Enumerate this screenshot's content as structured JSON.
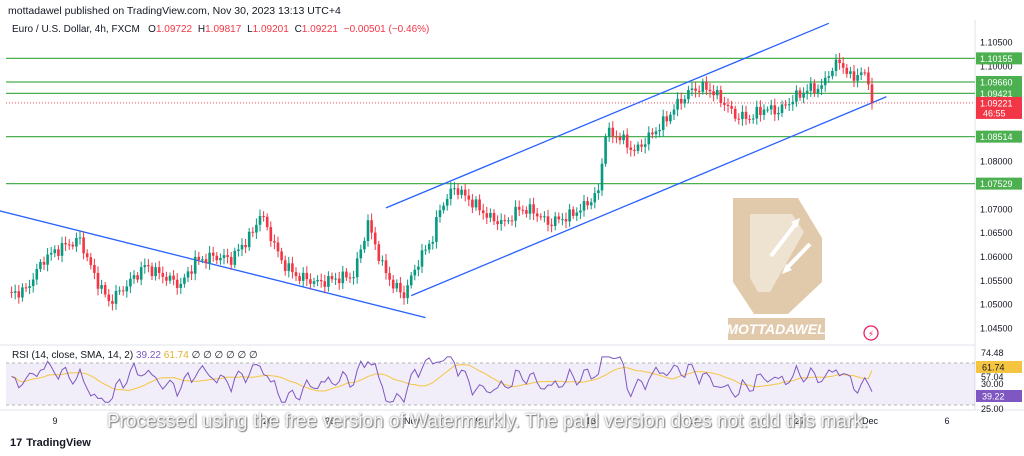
{
  "header": {
    "published": "mottadawel published on TradingView.com, Nov 30, 2023 13:13 UTC+4",
    "symbol": "Euro / U.S. Dollar, 4h, FXCM",
    "ohlc": [
      {
        "k": "O",
        "v": "1.09722"
      },
      {
        "k": "H",
        "v": "1.09817"
      },
      {
        "k": "L",
        "v": "1.09201"
      },
      {
        "k": "C",
        "v": "1.09221"
      },
      {
        "k": "",
        "v": "−0.00501 (−0.46%)"
      }
    ]
  },
  "rsi_legend": {
    "name": "RSI (14, close, SMA, 14, 2)",
    "rsi_value": "39.22",
    "sma_value": "61.74",
    "zeros": "∅ ∅ ∅ ∅ ∅ ∅"
  },
  "branding": {
    "watermark_logo": "MOTTADAWEL",
    "tradingview": "TradingView",
    "processed_notice": "Processed using the free version of Watermarkly. The paid version does not add this mark."
  },
  "colors": {
    "up": "#089981",
    "down": "#f23645",
    "channel": "#2962ff",
    "level": "#4caf50",
    "rsi": "#7e57c2",
    "rsi_sma": "#f5c542",
    "rsi_band": "#7e57c2"
  },
  "chart_data": [
    {
      "type": "candlestick",
      "symbol": "EURUSD",
      "timeframe": "4h",
      "ylim": [
        1.0425,
        1.1075
      ],
      "y_ticks": [
        "1.10500",
        "1.10000",
        "1.09500",
        "1.09000",
        "1.08500",
        "1.08000",
        "1.07500",
        "1.07000",
        "1.06500",
        "1.06000",
        "1.05500",
        "1.05000",
        "1.04500"
      ],
      "x_ticks": [
        "9",
        "16",
        "20",
        "26",
        "Nov",
        "9",
        "13",
        "17",
        "27",
        "Dec",
        "6"
      ],
      "price_labels": [
        {
          "price": 1.10155,
          "text": "1.10155",
          "kind": "level"
        },
        {
          "price": 1.0966,
          "text": "1.09660",
          "kind": "level"
        },
        {
          "price": 1.09421,
          "text": "1.09421",
          "kind": "level"
        },
        {
          "price": 1.08514,
          "text": "1.08514",
          "kind": "level"
        },
        {
          "price": 1.07529,
          "text": "1.07529",
          "kind": "level"
        },
        {
          "price": 1.09221,
          "text": "1.09221",
          "kind": "last",
          "countdown": "46:55"
        }
      ],
      "horizontal_levels": [
        1.10155,
        1.0966,
        1.09421,
        1.08514,
        1.07529
      ],
      "close_waypoints": [
        [
          0,
          1.052
        ],
        [
          5,
          1.053
        ],
        [
          10,
          1.0595
        ],
        [
          15,
          1.062
        ],
        [
          20,
          1.0635
        ],
        [
          24,
          1.056
        ],
        [
          28,
          1.0505
        ],
        [
          33,
          1.054
        ],
        [
          38,
          1.058
        ],
        [
          43,
          1.056
        ],
        [
          48,
          1.054
        ],
        [
          52,
          1.059
        ],
        [
          57,
          1.06
        ],
        [
          62,
          1.0595
        ],
        [
          68,
          1.065
        ],
        [
          70,
          1.069
        ],
        [
          72,
          1.066
        ],
        [
          76,
          1.059
        ],
        [
          80,
          1.056
        ],
        [
          86,
          1.0545
        ],
        [
          92,
          1.0555
        ],
        [
          96,
          1.056
        ],
        [
          100,
          1.067
        ],
        [
          104,
          1.058
        ],
        [
          107,
          1.054
        ],
        [
          110,
          1.052
        ],
        [
          114,
          1.059
        ],
        [
          118,
          1.064
        ],
        [
          120,
          1.07
        ],
        [
          124,
          1.0745
        ],
        [
          128,
          1.072
        ],
        [
          134,
          1.068
        ],
        [
          138,
          1.067
        ],
        [
          142,
          1.07
        ],
        [
          146,
          1.0695
        ],
        [
          150,
          1.067
        ],
        [
          156,
          1.0685
        ],
        [
          160,
          1.0705
        ],
        [
          164,
          1.0735
        ],
        [
          166,
          1.086
        ],
        [
          170,
          1.085
        ],
        [
          174,
          1.082
        ],
        [
          178,
          1.085
        ],
        [
          182,
          1.088
        ],
        [
          186,
          1.092
        ],
        [
          190,
          1.095
        ],
        [
          194,
          1.0955
        ],
        [
          198,
          1.093
        ],
        [
          202,
          1.0895
        ],
        [
          206,
          1.089
        ],
        [
          210,
          1.091
        ],
        [
          214,
          1.0905
        ],
        [
          218,
          1.093
        ],
        [
          222,
          1.095
        ],
        [
          226,
          1.0955
        ],
        [
          228,
          1.0985
        ],
        [
          231,
          1.101
        ],
        [
          234,
          1.0975
        ],
        [
          237,
          1.0985
        ],
        [
          239,
          1.097
        ],
        [
          240,
          1.0922
        ]
      ],
      "channels": [
        {
          "name": "descending",
          "points": [
            [
              -3,
              1.0697
            ],
            [
              116,
              1.0472
            ]
          ]
        },
        {
          "name": "rising-upper",
          "points": [
            [
              105,
              1.0702
            ],
            [
              228,
              1.1089
            ]
          ]
        },
        {
          "name": "rising-lower",
          "points": [
            [
              112,
              1.0518
            ],
            [
              244,
              1.0935
            ]
          ]
        }
      ]
    },
    {
      "type": "line",
      "name": "RSI (14, close, SMA, 14, 2)",
      "ylim": [
        25,
        78
      ],
      "y_ticks": [
        "74.48",
        "57.04",
        "30.00",
        "25.00"
      ],
      "band": [
        30,
        70
      ],
      "last_values": {
        "rsi": 39.22,
        "sma": 61.74
      }
    }
  ]
}
